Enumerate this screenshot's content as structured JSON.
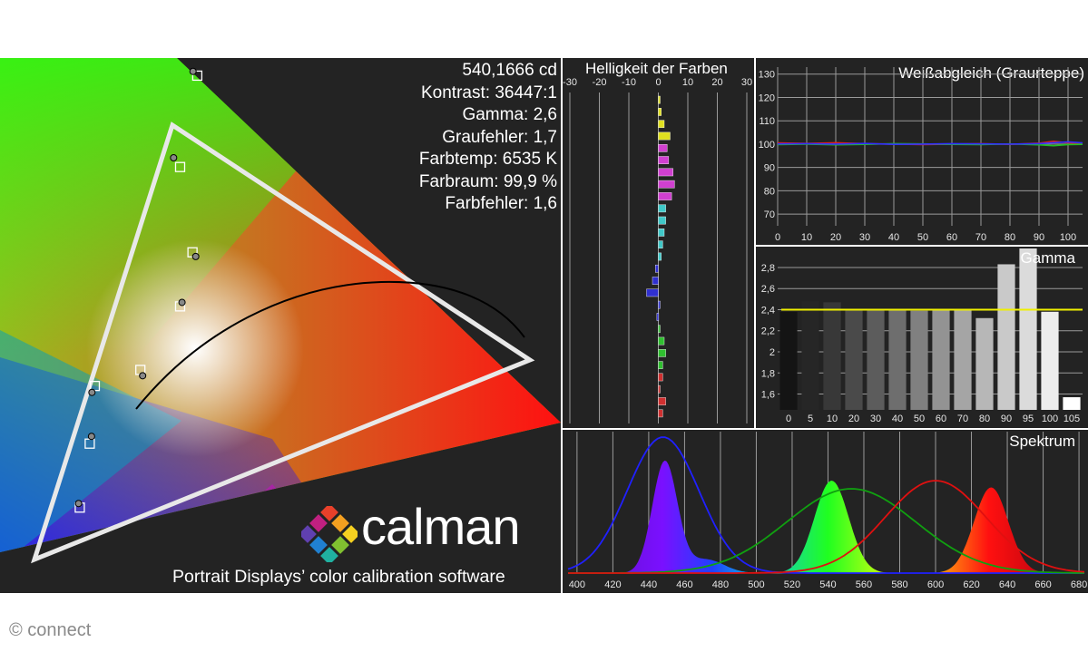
{
  "stats": {
    "luminance": "540,1666 cd",
    "contrast": "Kontrast: 36447:1",
    "gamma": "Gamma: 2,6",
    "gray_error": "Graufehler: 1,7",
    "color_temp": "Farbtemp: 6535 K",
    "color_space": "Farbraum: 99,9 %",
    "color_error": "Farbfehler: 1,6"
  },
  "logo": {
    "wordmark": "calman",
    "tagline": "Portrait Displays’ color calibration software"
  },
  "watermark": "© connect",
  "chart_data": [
    {
      "type": "scatter",
      "title": "",
      "description_kind": "cie-gamut",
      "series": [
        {
          "name": "target",
          "marker": "square",
          "points": [
            [
              0.196,
              0.126
            ],
            [
              0.215,
              0.276
            ],
            [
              0.326,
              0.662
            ],
            [
              0.306,
              0.549
            ],
            [
              0.315,
              0.445
            ],
            [
              0.301,
              0.378
            ],
            [
              0.26,
              0.298
            ],
            [
              0.208,
              0.205
            ]
          ]
        },
        {
          "name": "measured",
          "marker": "circle",
          "points": [
            [
              0.195,
              0.131
            ],
            [
              0.212,
              0.268
            ],
            [
              0.322,
              0.667
            ],
            [
              0.3,
              0.56
            ],
            [
              0.318,
              0.44
            ],
            [
              0.303,
              0.383
            ],
            [
              0.262,
              0.291
            ],
            [
              0.21,
              0.214
            ]
          ]
        }
      ],
      "gamut_triangle": [
        [
          0.64,
          0.33
        ],
        [
          0.3,
          0.6
        ],
        [
          0.15,
          0.06
        ]
      ]
    },
    {
      "type": "bar",
      "title": "Helligkeit der Farben",
      "x_ticks": [
        "-30",
        "-20",
        "-10",
        "0",
        "10",
        "20",
        "30"
      ],
      "xlim": [
        -30,
        30
      ],
      "colors": [
        "#e0e020",
        "#e0e020",
        "#e0e020",
        "#e0e020",
        "#d040d0",
        "#d040d0",
        "#d040d0",
        "#d040d0",
        "#d040d0",
        "#40c8c8",
        "#40c8c8",
        "#40c8c8",
        "#40c8c8",
        "#40c8c8",
        "#3030d0",
        "#3030d0",
        "#3030d0",
        "#3030d0",
        "#3030d0",
        "#30c030",
        "#30c030",
        "#30c030",
        "#30c030",
        "#d03030",
        "#d03030",
        "#d03030",
        "#d03030"
      ],
      "values": [
        0.5,
        1,
        2,
        4,
        3,
        3.5,
        5,
        5.5,
        4.5,
        2.5,
        2.5,
        2,
        1.5,
        1,
        -1,
        -2,
        -4,
        0.5,
        -0.5,
        0.5,
        2,
        2.5,
        1.5,
        1.5,
        0.5,
        2.5,
        1.5
      ]
    },
    {
      "type": "line",
      "title": "Weißabgleich (Graurteppe)",
      "x_ticks": [
        "0",
        "10",
        "20",
        "30",
        "40",
        "50",
        "60",
        "70",
        "80",
        "90",
        "100"
      ],
      "y_ticks": [
        "130",
        "120",
        "110",
        "100",
        "90",
        "80",
        "70"
      ],
      "x": [
        0,
        10,
        20,
        30,
        40,
        50,
        60,
        70,
        80,
        90,
        95,
        100,
        105
      ],
      "ylim": [
        65,
        133
      ],
      "series": [
        {
          "name": "R",
          "color": "#e02020",
          "values": [
            100.5,
            100.3,
            100.6,
            100.2,
            100.0,
            99.8,
            100.0,
            100.2,
            99.9,
            100.4,
            101.2,
            100.6,
            100.2
          ]
        },
        {
          "name": "G",
          "color": "#20c020",
          "values": [
            99.8,
            100.0,
            99.7,
            99.9,
            100.2,
            100.1,
            99.9,
            99.8,
            100.1,
            99.7,
            99.3,
            99.8,
            99.9
          ]
        },
        {
          "name": "B",
          "color": "#3030ff",
          "values": [
            100.1,
            100.2,
            100.0,
            100.3,
            99.9,
            100.0,
            100.2,
            100.1,
            100.0,
            100.2,
            100.6,
            101.0,
            100.5
          ]
        }
      ]
    },
    {
      "type": "bar",
      "title": "Gamma",
      "categories": [
        "0",
        "5",
        "10",
        "20",
        "30",
        "40",
        "50",
        "60",
        "70",
        "80",
        "90",
        "95",
        "100",
        "105"
      ],
      "values": [
        2.38,
        2.48,
        2.47,
        2.4,
        2.4,
        2.4,
        2.39,
        2.4,
        2.4,
        2.32,
        2.83,
        2.98,
        2.38,
        1.57
      ],
      "y_ticks": [
        "2,8",
        "2,6",
        "2,4",
        "2,2",
        "2",
        "1,8",
        "1,6"
      ],
      "ylim": [
        1.45,
        2.98
      ],
      "target": 2.4
    },
    {
      "type": "area",
      "title": "Spektrum",
      "x_ticks": [
        "400",
        "420",
        "440",
        "460",
        "480",
        "500",
        "520",
        "540",
        "560",
        "580",
        "600",
        "620",
        "640",
        "660",
        "680"
      ],
      "xlim": [
        395,
        683
      ],
      "peaks": [
        {
          "center": 449,
          "height": 0.82
        },
        {
          "center": 542,
          "height": 0.68
        },
        {
          "center": 631,
          "height": 0.63
        }
      ]
    }
  ]
}
